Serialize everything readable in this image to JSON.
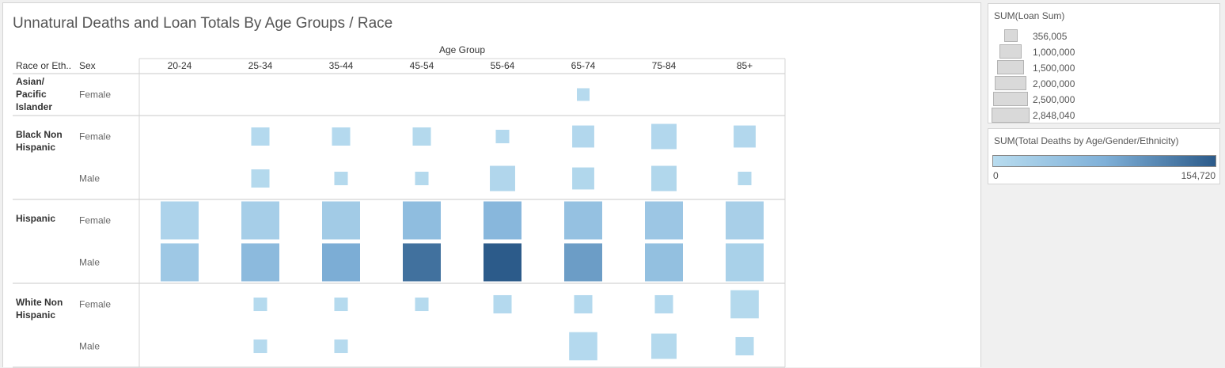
{
  "title": "Unnatural Deaths and Loan Totals By Age Groups / Race",
  "legends": {
    "size_title": "SUM(Loan Sum)",
    "size_items": [
      "356,005",
      "1,000,000",
      "1,500,000",
      "2,000,000",
      "2,500,000",
      "2,848,040"
    ],
    "size_values": [
      356005,
      1000000,
      1500000,
      2000000,
      2500000,
      2848040
    ],
    "color_title": "SUM(Total Deaths by Age/Gender/Ethnicity)",
    "color_min": "0",
    "color_max": "154,720"
  },
  "chart_data": {
    "type": "heatmap",
    "column_header": "Age Group",
    "row_headers": [
      "Race or Eth..",
      "Sex"
    ],
    "columns": [
      "20-24",
      "25-34",
      "35-44",
      "45-54",
      "55-64",
      "65-74",
      "75-84",
      "85+"
    ],
    "groups": [
      {
        "race": "Asian/ Pacific Islander",
        "rows": [
          "Female"
        ]
      },
      {
        "race": "Black Non Hispanic",
        "rows": [
          "Female",
          "Male"
        ]
      },
      {
        "race": "Hispanic",
        "rows": [
          "Female",
          "Male"
        ]
      },
      {
        "race": "White Non Hispanic",
        "rows": [
          "Female",
          "Male"
        ]
      }
    ],
    "size_encoding": "SUM(Loan Sum)",
    "color_encoding": "SUM(Total Deaths by Age/Gender/Ethnicity)",
    "size_range": [
      356005,
      2848040
    ],
    "color_range": [
      0,
      154720
    ],
    "cells": [
      {
        "race": "Asian/ Pacific Islander",
        "sex": "Female",
        "age": "65-74",
        "loan_sum": 356005,
        "deaths": 3000
      },
      {
        "race": "Black Non Hispanic",
        "sex": "Female",
        "age": "25-34",
        "loan_sum": 700000,
        "deaths": 5000
      },
      {
        "race": "Black Non Hispanic",
        "sex": "Female",
        "age": "35-44",
        "loan_sum": 700000,
        "deaths": 5000
      },
      {
        "race": "Black Non Hispanic",
        "sex": "Female",
        "age": "45-54",
        "loan_sum": 700000,
        "deaths": 6000
      },
      {
        "race": "Black Non Hispanic",
        "sex": "Female",
        "age": "55-64",
        "loan_sum": 400000,
        "deaths": 5000
      },
      {
        "race": "Black Non Hispanic",
        "sex": "Female",
        "age": "65-74",
        "loan_sum": 1000000,
        "deaths": 8000
      },
      {
        "race": "Black Non Hispanic",
        "sex": "Female",
        "age": "75-84",
        "loan_sum": 1300000,
        "deaths": 8000
      },
      {
        "race": "Black Non Hispanic",
        "sex": "Female",
        "age": "85+",
        "loan_sum": 1000000,
        "deaths": 8000
      },
      {
        "race": "Black Non Hispanic",
        "sex": "Male",
        "age": "25-34",
        "loan_sum": 700000,
        "deaths": 6000
      },
      {
        "race": "Black Non Hispanic",
        "sex": "Male",
        "age": "35-44",
        "loan_sum": 400000,
        "deaths": 6000
      },
      {
        "race": "Black Non Hispanic",
        "sex": "Male",
        "age": "45-54",
        "loan_sum": 400000,
        "deaths": 6000
      },
      {
        "race": "Black Non Hispanic",
        "sex": "Male",
        "age": "55-64",
        "loan_sum": 1300000,
        "deaths": 10000
      },
      {
        "race": "Black Non Hispanic",
        "sex": "Male",
        "age": "65-74",
        "loan_sum": 1000000,
        "deaths": 9000
      },
      {
        "race": "Black Non Hispanic",
        "sex": "Male",
        "age": "75-84",
        "loan_sum": 1300000,
        "deaths": 9000
      },
      {
        "race": "Black Non Hispanic",
        "sex": "Male",
        "age": "85+",
        "loan_sum": 400000,
        "deaths": 6000
      },
      {
        "race": "Hispanic",
        "sex": "Female",
        "age": "20-24",
        "loan_sum": 2848040,
        "deaths": 15000
      },
      {
        "race": "Hispanic",
        "sex": "Female",
        "age": "25-34",
        "loan_sum": 2848040,
        "deaths": 25000
      },
      {
        "race": "Hispanic",
        "sex": "Female",
        "age": "35-44",
        "loan_sum": 2848040,
        "deaths": 30000
      },
      {
        "race": "Hispanic",
        "sex": "Female",
        "age": "45-54",
        "loan_sum": 2848040,
        "deaths": 55000
      },
      {
        "race": "Hispanic",
        "sex": "Female",
        "age": "55-64",
        "loan_sum": 2848040,
        "deaths": 65000
      },
      {
        "race": "Hispanic",
        "sex": "Female",
        "age": "65-74",
        "loan_sum": 2848040,
        "deaths": 48000
      },
      {
        "race": "Hispanic",
        "sex": "Female",
        "age": "75-84",
        "loan_sum": 2848040,
        "deaths": 38000
      },
      {
        "race": "Hispanic",
        "sex": "Female",
        "age": "85+",
        "loan_sum": 2848040,
        "deaths": 22000
      },
      {
        "race": "Hispanic",
        "sex": "Male",
        "age": "20-24",
        "loan_sum": 2848040,
        "deaths": 35000
      },
      {
        "race": "Hispanic",
        "sex": "Male",
        "age": "25-34",
        "loan_sum": 2848040,
        "deaths": 60000
      },
      {
        "race": "Hispanic",
        "sex": "Male",
        "age": "35-44",
        "loan_sum": 2848040,
        "deaths": 80000
      },
      {
        "race": "Hispanic",
        "sex": "Male",
        "age": "45-54",
        "loan_sum": 2848040,
        "deaths": 135000
      },
      {
        "race": "Hispanic",
        "sex": "Male",
        "age": "55-64",
        "loan_sum": 2848040,
        "deaths": 154720
      },
      {
        "race": "Hispanic",
        "sex": "Male",
        "age": "65-74",
        "loan_sum": 2848040,
        "deaths": 95000
      },
      {
        "race": "Hispanic",
        "sex": "Male",
        "age": "75-84",
        "loan_sum": 2848040,
        "deaths": 50000
      },
      {
        "race": "Hispanic",
        "sex": "Male",
        "age": "85+",
        "loan_sum": 2848040,
        "deaths": 20000
      },
      {
        "race": "White Non Hispanic",
        "sex": "Female",
        "age": "25-34",
        "loan_sum": 400000,
        "deaths": 4000
      },
      {
        "race": "White Non Hispanic",
        "sex": "Female",
        "age": "35-44",
        "loan_sum": 400000,
        "deaths": 4000
      },
      {
        "race": "White Non Hispanic",
        "sex": "Female",
        "age": "45-54",
        "loan_sum": 400000,
        "deaths": 4000
      },
      {
        "race": "White Non Hispanic",
        "sex": "Female",
        "age": "55-64",
        "loan_sum": 700000,
        "deaths": 5000
      },
      {
        "race": "White Non Hispanic",
        "sex": "Female",
        "age": "65-74",
        "loan_sum": 700000,
        "deaths": 5000
      },
      {
        "race": "White Non Hispanic",
        "sex": "Female",
        "age": "75-84",
        "loan_sum": 700000,
        "deaths": 5000
      },
      {
        "race": "White Non Hispanic",
        "sex": "Female",
        "age": "85+",
        "loan_sum": 1600000,
        "deaths": 6000
      },
      {
        "race": "White Non Hispanic",
        "sex": "Male",
        "age": "25-34",
        "loan_sum": 400000,
        "deaths": 3000
      },
      {
        "race": "White Non Hispanic",
        "sex": "Male",
        "age": "35-44",
        "loan_sum": 400000,
        "deaths": 3000
      },
      {
        "race": "White Non Hispanic",
        "sex": "Male",
        "age": "65-74",
        "loan_sum": 1600000,
        "deaths": 5000
      },
      {
        "race": "White Non Hispanic",
        "sex": "Male",
        "age": "75-84",
        "loan_sum": 1300000,
        "deaths": 6000
      },
      {
        "race": "White Non Hispanic",
        "sex": "Male",
        "age": "85+",
        "loan_sum": 700000,
        "deaths": 4000
      }
    ]
  }
}
